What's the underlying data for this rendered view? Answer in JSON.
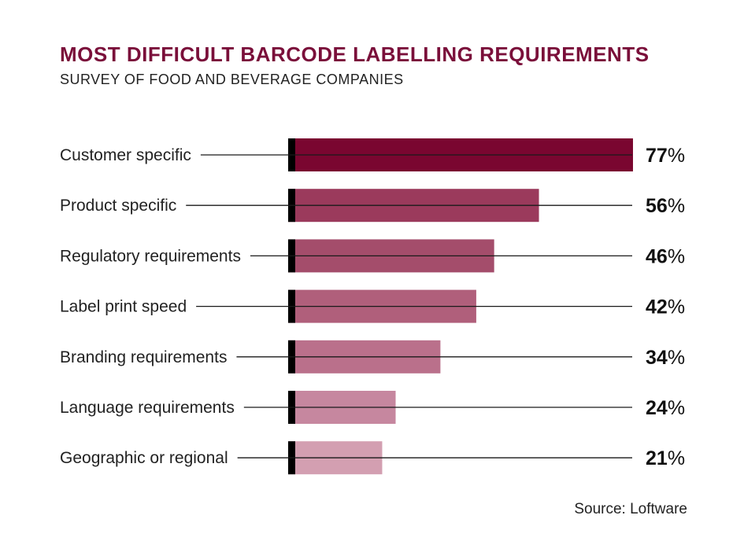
{
  "title": "MOST DIFFICULT BARCODE LABELLING REQUIREMENTS",
  "subtitle": "SURVEY OF FOOD AND BEVERAGE COMPANIES",
  "source": "Source: Loftware",
  "chart_data": {
    "type": "bar",
    "orientation": "horizontal",
    "categories": [
      "Customer specific",
      "Product specific",
      "Regulatory requirements",
      "Label print speed",
      "Branding requirements",
      "Language requirements",
      "Geographic or regional"
    ],
    "values": [
      77,
      56,
      46,
      42,
      34,
      24,
      21
    ],
    "value_labels": [
      "77%",
      "56%",
      "46%",
      "42%",
      "34%",
      "24%",
      "21%"
    ],
    "unit": "%",
    "colors": [
      "#7a0630",
      "#9b3a5c",
      "#a44d6b",
      "#b05f7b",
      "#ba708b",
      "#c6879f",
      "#d39fb1"
    ],
    "xlim": [
      0,
      77
    ],
    "grid": false,
    "legend": "none"
  }
}
